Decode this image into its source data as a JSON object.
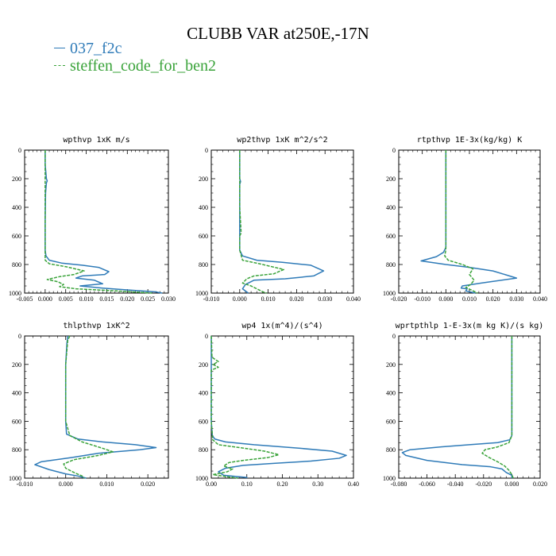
{
  "title": "CLUBB VAR at250E,-17N",
  "legend": [
    {
      "name": "037_f2c",
      "color": "#2f7bb8",
      "dash": "solid"
    },
    {
      "name": "steffen_code_for_ben2",
      "color": "#3aa33a",
      "dash": "dashed"
    }
  ],
  "chart_data": [
    {
      "type": "line",
      "title": "wpthvp  1xK m/s",
      "xlim": [
        -0.005,
        0.03
      ],
      "xticks": [
        "-0.005",
        "0.000",
        "0.005",
        "0.010",
        "0.015",
        "0.020",
        "0.025",
        "0.030"
      ],
      "xtick_values": [
        -0.005,
        0,
        0.005,
        0.01,
        0.015,
        0.02,
        0.025,
        0.03
      ],
      "ylim": [
        0,
        1000
      ],
      "yticks": [
        "0",
        "200",
        "400",
        "600",
        "800",
        "1000"
      ],
      "y_inverted": true,
      "series": [
        {
          "name": "037_f2c",
          "points": [
            [
              0,
              0
            ],
            [
              0,
              100
            ],
            [
              0.0003,
              200
            ],
            [
              0.0005,
              215
            ],
            [
              0.0003,
              230
            ],
            [
              0.0001,
              300
            ],
            [
              0,
              500
            ],
            [
              0,
              700
            ],
            [
              0.0002,
              740
            ],
            [
              0.001,
              770
            ],
            [
              0.004,
              790
            ],
            [
              0.009,
              805
            ],
            [
              0.013,
              820
            ],
            [
              0.0155,
              850
            ],
            [
              0.0145,
              870
            ],
            [
              0.009,
              880
            ],
            [
              0.0075,
              895
            ],
            [
              0.012,
              910
            ],
            [
              0.014,
              935
            ],
            [
              0.0085,
              950
            ],
            [
              0.014,
              965
            ],
            [
              0.021,
              980
            ],
            [
              0.027,
              992
            ],
            [
              0.0285,
              1000
            ]
          ]
        },
        {
          "name": "steffen_code_for_ben2",
          "points": [
            [
              0,
              0
            ],
            [
              0,
              200
            ],
            [
              0,
              400
            ],
            [
              0,
              600
            ],
            [
              0,
              700
            ],
            [
              0,
              770
            ],
            [
              0.001,
              795
            ],
            [
              0.005,
              815
            ],
            [
              0.0095,
              845
            ],
            [
              0.007,
              870
            ],
            [
              0.0035,
              885
            ],
            [
              0.0005,
              905
            ],
            [
              0.003,
              920
            ],
            [
              0.0045,
              940
            ],
            [
              0.0035,
              955
            ],
            [
              0.0075,
              970
            ],
            [
              0.0175,
              985
            ],
            [
              0.026,
              1000
            ]
          ]
        }
      ]
    },
    {
      "type": "line",
      "title": "wp2thvp  1xK m^2/s^2",
      "xlim": [
        -0.01,
        0.04
      ],
      "xticks": [
        "-0.010",
        "0.000",
        "0.010",
        "0.020",
        "0.030",
        "0.040"
      ],
      "xtick_values": [
        -0.01,
        0,
        0.01,
        0.02,
        0.03,
        0.04
      ],
      "ylim": [
        0,
        1000
      ],
      "yticks": [
        "0",
        "200",
        "400",
        "600",
        "800",
        "1000"
      ],
      "y_inverted": true,
      "series": [
        {
          "name": "037_f2c",
          "points": [
            [
              0,
              0
            ],
            [
              0,
              200
            ],
            [
              0.0003,
              220
            ],
            [
              0,
              240
            ],
            [
              0,
              500
            ],
            [
              0,
              700
            ],
            [
              0.001,
              740
            ],
            [
              0.006,
              770
            ],
            [
              0.015,
              785
            ],
            [
              0.025,
              805
            ],
            [
              0.0295,
              845
            ],
            [
              0.026,
              880
            ],
            [
              0.016,
              900
            ],
            [
              0.005,
              910
            ],
            [
              0.002,
              940
            ],
            [
              0.001,
              970
            ],
            [
              0.003,
              1000
            ]
          ]
        },
        {
          "name": "steffen_code_for_ben2",
          "points": [
            [
              0,
              0
            ],
            [
              0,
              400
            ],
            [
              0.0005,
              580
            ],
            [
              0,
              600
            ],
            [
              0,
              700
            ],
            [
              0.001,
              770
            ],
            [
              0.007,
              795
            ],
            [
              0.0155,
              835
            ],
            [
              0.012,
              865
            ],
            [
              0.005,
              880
            ],
            [
              0.0025,
              900
            ],
            [
              0.001,
              930
            ],
            [
              0.004,
              950
            ],
            [
              0.006,
              970
            ],
            [
              0.008,
              990
            ],
            [
              0.0095,
              1000
            ]
          ]
        }
      ]
    },
    {
      "type": "line",
      "title": "rtpthvp  1E-3x(kg/kg) K",
      "xlim": [
        -0.02,
        0.04
      ],
      "xticks": [
        "-0.020",
        "-0.010",
        "0.000",
        "0.010",
        "0.020",
        "0.030",
        "0.040"
      ],
      "xtick_values": [
        -0.02,
        -0.01,
        0,
        0.01,
        0.02,
        0.03,
        0.04
      ],
      "ylim": [
        0,
        1000
      ],
      "yticks": [
        "0",
        "200",
        "400",
        "600",
        "800",
        "1000"
      ],
      "y_inverted": true,
      "series": [
        {
          "name": "037_f2c",
          "points": [
            [
              0,
              0
            ],
            [
              0,
              200
            ],
            [
              0,
              400
            ],
            [
              0,
              600
            ],
            [
              0,
              680
            ],
            [
              -0.001,
              715
            ],
            [
              -0.004,
              745
            ],
            [
              -0.0105,
              775
            ],
            [
              0,
              800
            ],
            [
              0.01,
              820
            ],
            [
              0.02,
              845
            ],
            [
              0.03,
              895
            ],
            [
              0.015,
              930
            ],
            [
              0.007,
              950
            ],
            [
              0.0065,
              965
            ],
            [
              0.009,
              970
            ],
            [
              0.0085,
              985
            ],
            [
              0.0125,
              1000
            ]
          ]
        },
        {
          "name": "steffen_code_for_ben2",
          "points": [
            [
              0,
              0
            ],
            [
              0,
              300
            ],
            [
              0,
              500
            ],
            [
              0,
              700
            ],
            [
              -0.0005,
              740
            ],
            [
              0.001,
              770
            ],
            [
              0.007,
              800
            ],
            [
              0.0115,
              830
            ],
            [
              0.01,
              870
            ],
            [
              0.012,
              910
            ],
            [
              0.0105,
              940
            ],
            [
              0.0085,
              960
            ],
            [
              0.011,
              980
            ],
            [
              0.0135,
              1000
            ]
          ]
        }
      ]
    },
    {
      "type": "line",
      "title": "thlpthvp  1xK^2",
      "xlim": [
        -0.01,
        0.025
      ],
      "xticks": [
        "-0.010",
        "0.000",
        "0.010",
        "0.020"
      ],
      "xtick_values": [
        -0.01,
        0,
        0.01,
        0.02
      ],
      "ylim": [
        0,
        1000
      ],
      "yticks": [
        "0",
        "200",
        "400",
        "600",
        "800",
        "1000"
      ],
      "y_inverted": true,
      "series": [
        {
          "name": "037_f2c",
          "points": [
            [
              0.0005,
              0
            ],
            [
              0.0003,
              50
            ],
            [
              0,
              200
            ],
            [
              0,
              400
            ],
            [
              0,
              600
            ],
            [
              0.0002,
              690
            ],
            [
              0.003,
              725
            ],
            [
              0.009,
              745
            ],
            [
              0.017,
              765
            ],
            [
              0.022,
              785
            ],
            [
              0.018,
              800
            ],
            [
              0.008,
              825
            ],
            [
              0.0015,
              855
            ],
            [
              -0.006,
              885
            ],
            [
              -0.0075,
              905
            ],
            [
              -0.004,
              940
            ],
            [
              0,
              970
            ],
            [
              0.003,
              985
            ],
            [
              0.005,
              1000
            ]
          ]
        },
        {
          "name": "steffen_code_for_ben2",
          "points": [
            [
              0.001,
              0
            ],
            [
              0.0005,
              30
            ],
            [
              0,
              200
            ],
            [
              0,
              400
            ],
            [
              0,
              600
            ],
            [
              0.001,
              700
            ],
            [
              0.004,
              745
            ],
            [
              0.009,
              790
            ],
            [
              0.0115,
              815
            ],
            [
              0.008,
              840
            ],
            [
              0.002,
              870
            ],
            [
              -0.0005,
              900
            ],
            [
              0,
              930
            ],
            [
              0.002,
              960
            ],
            [
              0.004,
              985
            ],
            [
              0.0045,
              1000
            ]
          ]
        }
      ]
    },
    {
      "type": "line",
      "title": "wp4  1x(m^4)/(s^4)",
      "xlim": [
        0,
        0.4
      ],
      "xticks": [
        "0.00",
        "0.10",
        "0.20",
        "0.30",
        "0.40"
      ],
      "xtick_values": [
        0,
        0.1,
        0.2,
        0.3,
        0.4
      ],
      "ylim": [
        0,
        1000
      ],
      "yticks": [
        "0",
        "200",
        "400",
        "600",
        "800",
        "1000"
      ],
      "y_inverted": true,
      "series": [
        {
          "name": "037_f2c",
          "points": [
            [
              0,
              0
            ],
            [
              0,
              400
            ],
            [
              0,
              600
            ],
            [
              0.003,
              700
            ],
            [
              0.01,
              725
            ],
            [
              0.04,
              745
            ],
            [
              0.12,
              765
            ],
            [
              0.25,
              790
            ],
            [
              0.34,
              810
            ],
            [
              0.38,
              840
            ],
            [
              0.36,
              860
            ],
            [
              0.28,
              880
            ],
            [
              0.18,
              895
            ],
            [
              0.09,
              910
            ],
            [
              0.04,
              930
            ],
            [
              0.02,
              955
            ],
            [
              0.035,
              980
            ],
            [
              0.1,
              995
            ],
            [
              0.1,
              1000
            ]
          ]
        },
        {
          "name": "steffen_code_for_ben2",
          "points": [
            [
              0,
              0
            ],
            [
              0.002,
              150
            ],
            [
              0.02,
              180
            ],
            [
              0.005,
              200
            ],
            [
              0.02,
              220
            ],
            [
              0,
              240
            ],
            [
              0,
              400
            ],
            [
              0,
              600
            ],
            [
              0.004,
              730
            ],
            [
              0.02,
              765
            ],
            [
              0.08,
              785
            ],
            [
              0.15,
              810
            ],
            [
              0.19,
              835
            ],
            [
              0.16,
              855
            ],
            [
              0.09,
              875
            ],
            [
              0.05,
              890
            ],
            [
              0.035,
              915
            ],
            [
              0.06,
              935
            ],
            [
              0.045,
              955
            ],
            [
              0.005,
              975
            ],
            [
              0.045,
              990
            ],
            [
              0.075,
              1000
            ]
          ]
        }
      ]
    },
    {
      "type": "line",
      "title": "wprtpthlp  1-E-3x(m kg K)/(s kg)",
      "xlim": [
        -0.08,
        0.02
      ],
      "xticks": [
        "-0.080",
        "-0.060",
        "-0.040",
        "-0.020",
        "0.000",
        "0.020"
      ],
      "xtick_values": [
        -0.08,
        -0.06,
        -0.04,
        -0.02,
        0,
        0.02
      ],
      "ylim": [
        0,
        1000
      ],
      "yticks": [
        "0",
        "200",
        "400",
        "600",
        "800",
        "1000"
      ],
      "y_inverted": true,
      "series": [
        {
          "name": "037_f2c",
          "points": [
            [
              0,
              0
            ],
            [
              0,
              200
            ],
            [
              0,
              400
            ],
            [
              0,
              600
            ],
            [
              0,
              700
            ],
            [
              -0.0015,
              730
            ],
            [
              -0.01,
              750
            ],
            [
              -0.03,
              765
            ],
            [
              -0.05,
              780
            ],
            [
              -0.072,
              800
            ],
            [
              -0.0775,
              820
            ],
            [
              -0.075,
              840
            ],
            [
              -0.06,
              875
            ],
            [
              -0.035,
              905
            ],
            [
              -0.015,
              920
            ],
            [
              -0.007,
              935
            ],
            [
              -0.004,
              960
            ],
            [
              0,
              980
            ],
            [
              0,
              1000
            ]
          ]
        },
        {
          "name": "steffen_code_for_ben2",
          "points": [
            [
              0,
              0
            ],
            [
              0,
              400
            ],
            [
              0,
              600
            ],
            [
              0,
              700
            ],
            [
              -0.002,
              750
            ],
            [
              -0.01,
              780
            ],
            [
              -0.019,
              800
            ],
            [
              -0.021,
              825
            ],
            [
              -0.016,
              855
            ],
            [
              -0.01,
              885
            ],
            [
              -0.005,
              915
            ],
            [
              -0.002,
              945
            ],
            [
              0,
              975
            ],
            [
              0.001,
              1000
            ]
          ]
        }
      ]
    }
  ]
}
